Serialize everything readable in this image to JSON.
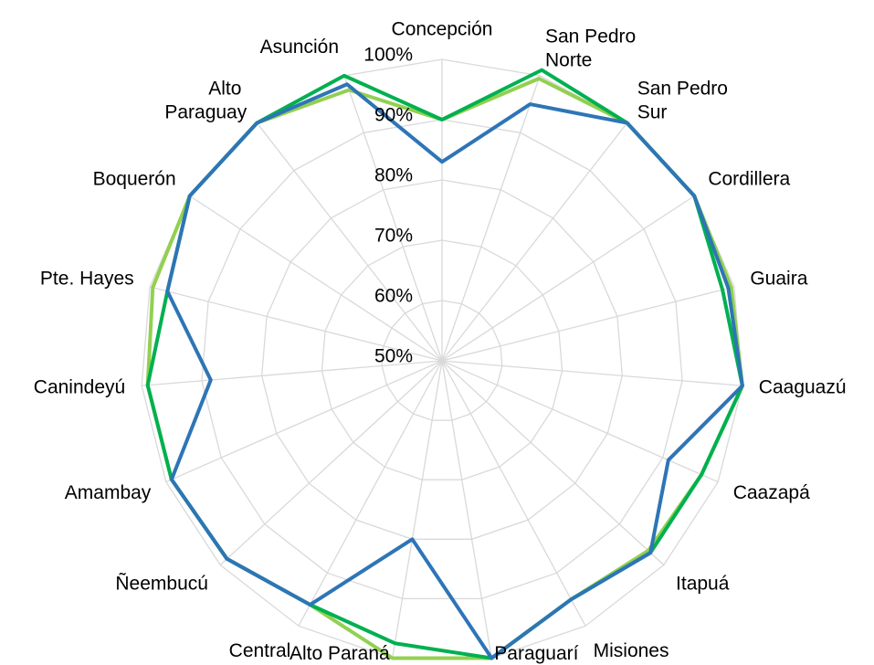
{
  "chart_data": {
    "type": "radar",
    "categories": [
      "Concepción",
      "San Pedro Norte",
      "San Pedro Sur",
      "Cordillera",
      "Guaira",
      "Caaguazú",
      "Caazapá",
      "Itapuá",
      "Misiones",
      "Paraguarí",
      "Alto Paraná",
      "Central",
      "Ñeembucú",
      "Amambay",
      "Canindeyú",
      "Pte. Hayes",
      "Boquerón",
      "Alto Paraguay",
      "Asunción"
    ],
    "series": [
      {
        "color": "#92d050",
        "values": [
          90,
          99.5,
          100,
          100,
          99.5,
          100,
          97,
          96.5,
          95,
          100,
          100,
          96,
          98.5,
          99,
          99,
          99.5,
          100,
          100,
          97.5
        ]
      },
      {
        "color": "#00b050",
        "values": [
          90,
          101,
          100,
          100,
          98,
          100,
          97,
          97,
          95,
          100,
          97.5,
          96,
          98.5,
          99,
          99,
          97,
          100,
          100,
          100
        ]
      },
      {
        "color": "#2e75b6",
        "values": [
          83,
          95,
          100,
          100,
          99,
          100,
          91,
          97,
          95,
          100,
          80,
          96,
          98.5,
          99,
          88.5,
          97,
          100,
          100,
          98.5
        ]
      }
    ],
    "ylim": [
      50,
      100
    ],
    "yticks": [
      {
        "value": 50,
        "label": "50%"
      },
      {
        "value": 60,
        "label": "60%"
      },
      {
        "value": 70,
        "label": "70%"
      },
      {
        "value": 80,
        "label": "80%"
      },
      {
        "value": 90,
        "label": "90%"
      },
      {
        "value": 100,
        "label": "100%"
      }
    ],
    "grid": true
  }
}
